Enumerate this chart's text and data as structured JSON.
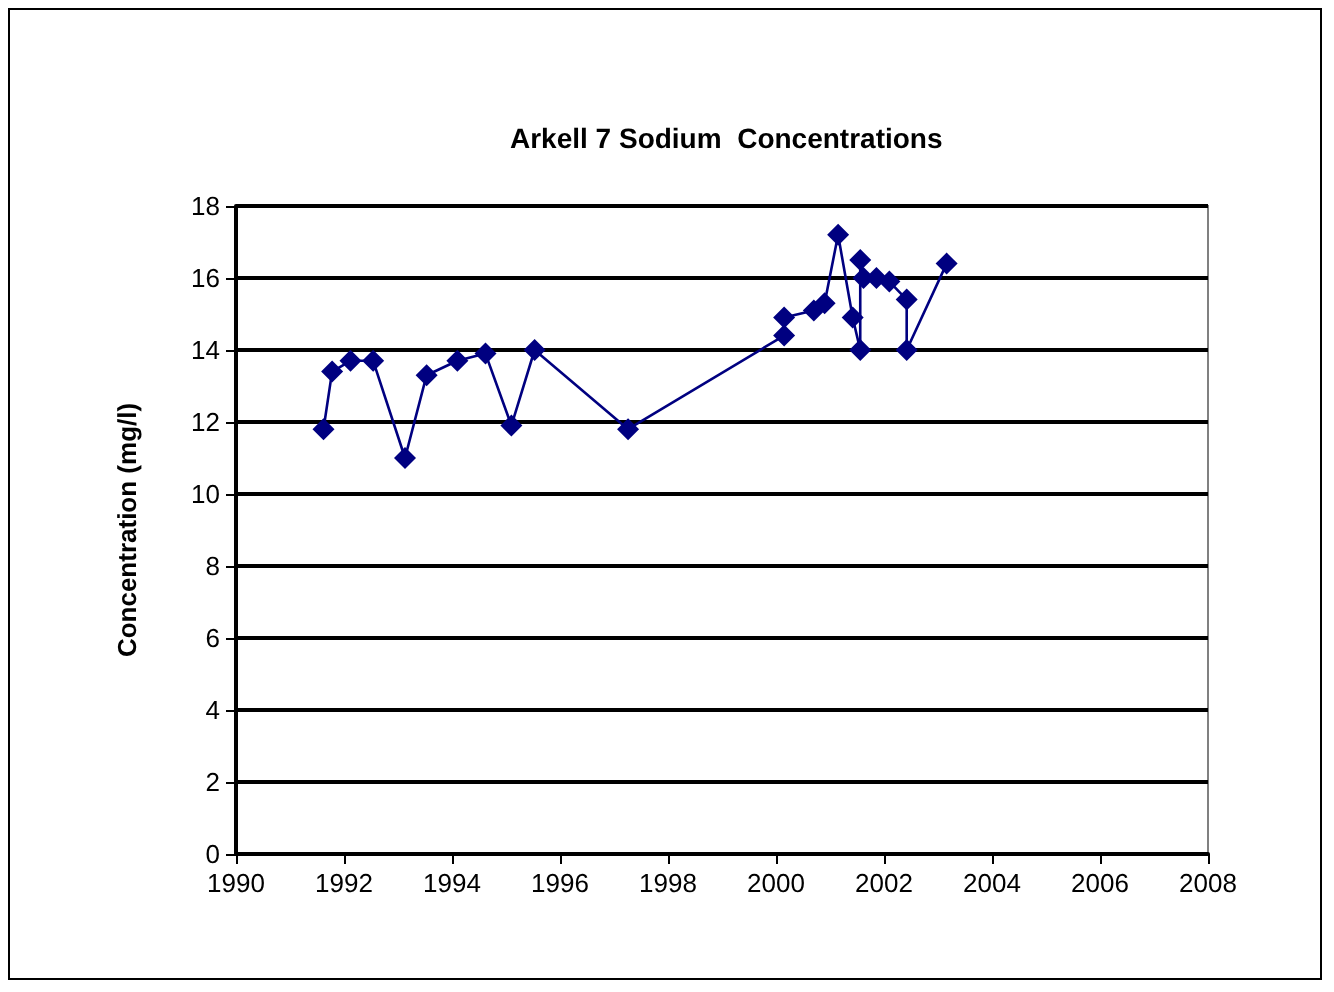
{
  "chart_data": {
    "type": "line",
    "title": "Arkell 7 Sodium  Concentrations",
    "ylabel": "Concentration (mg/l)",
    "x": [
      1991.62,
      1991.78,
      1992.12,
      1992.54,
      1993.13,
      1993.53,
      1994.1,
      1994.62,
      1995.1,
      1995.53,
      1997.26,
      2000.15,
      2000.15,
      2000.7,
      2000.9,
      2001.15,
      2001.42,
      2001.56,
      2001.56,
      2001.62,
      2001.86,
      2002.1,
      2002.42,
      2002.42,
      2003.16
    ],
    "series": [
      {
        "color": "#000080",
        "values": [
          11.8,
          13.4,
          13.7,
          13.7,
          11.0,
          13.3,
          13.7,
          13.9,
          11.9,
          14.0,
          11.8,
          14.4,
          14.9,
          15.1,
          15.3,
          17.2,
          14.9,
          14.0,
          16.5,
          16.0,
          16.0,
          15.9,
          15.4,
          14.0,
          16.4
        ]
      }
    ],
    "xlim": [
      1990,
      2008
    ],
    "xticks": [
      1990,
      1992,
      1994,
      1996,
      1998,
      2000,
      2002,
      2004,
      2006,
      2008
    ],
    "ylim": [
      0,
      18
    ],
    "yticks": [
      0,
      2,
      4,
      6,
      8,
      10,
      12,
      14,
      16,
      18
    ],
    "grid": "y",
    "marker": "diamond",
    "line_style": "solid"
  }
}
